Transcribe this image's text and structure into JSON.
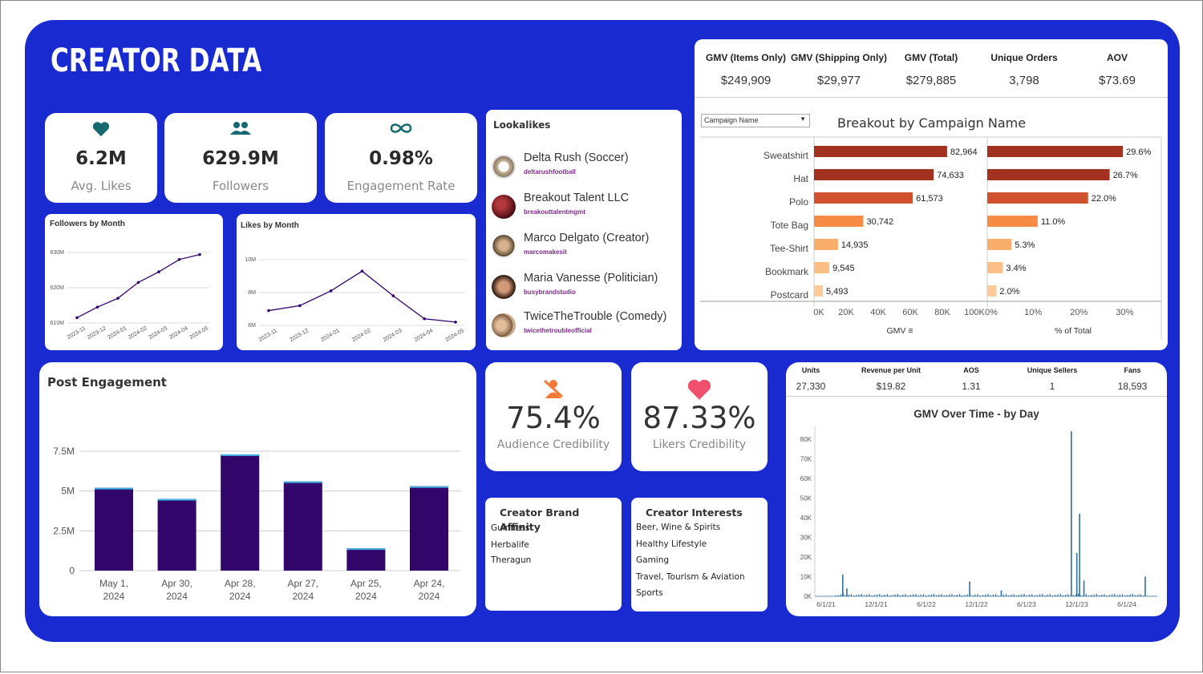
{
  "page": {
    "title": "CREATOR DATA"
  },
  "kpis": {
    "avg_likes": {
      "value": "6.2M",
      "label": "Avg. Likes"
    },
    "followers": {
      "value": "629.9M",
      "label": "Followers"
    },
    "engagement": {
      "value": "0.98%",
      "label": "Engagement Rate"
    }
  },
  "followers_by_month": {
    "title": "Followers by Month",
    "chart_data": {
      "type": "line",
      "categories": [
        "2023-11",
        "2023-12",
        "2024-01",
        "2024-02",
        "2024-03",
        "2024-04",
        "2024-05"
      ],
      "values": [
        611.5,
        614.5,
        617,
        621.5,
        624.5,
        628,
        629.4
      ],
      "y_ticks": [
        "630M",
        "620M",
        "610M"
      ],
      "ylim": [
        610,
        630
      ]
    }
  },
  "likes_by_month": {
    "title": "Likes by Month",
    "chart_data": {
      "type": "line",
      "categories": [
        "2023-11",
        "2023-12",
        "2024-01",
        "2024-02",
        "2024-03",
        "2024-04",
        "2024-05"
      ],
      "values": [
        6.9,
        7.2,
        8.1,
        9.3,
        7.8,
        6.4,
        6.2
      ],
      "y_ticks": [
        "10M",
        "8M",
        "6M"
      ],
      "ylim": [
        6,
        10
      ]
    }
  },
  "lookalikes": {
    "title": "Lookalikes",
    "items": [
      {
        "name": "Delta Rush (Soccer)",
        "handle": "deltarushfootball"
      },
      {
        "name": "Breakout Talent LLC",
        "handle": "breakouttalentmgmt"
      },
      {
        "name": "Marco Delgato (Creator)",
        "handle": "marcomakesit"
      },
      {
        "name": "Maria Vanesse (Politician)",
        "handle": "busybrandstudio"
      },
      {
        "name": "TwiceTheTrouble (Comedy)",
        "handle": "twicethetroubleofficial"
      }
    ]
  },
  "gmv_summary": {
    "headers": [
      "GMV (Items Only)",
      "GMV (Shipping Only)",
      "GMV (Total)",
      "Unique Orders",
      "AOV"
    ],
    "values": [
      "$249,909",
      "$29,977",
      "$279,885",
      "3,798",
      "$73.69"
    ]
  },
  "breakout": {
    "filter_label": "Campaign Name",
    "title": "Breakout by Campaign Name",
    "chart_data": {
      "type": "bar",
      "categories": [
        "Sweatshirt",
        "Hat",
        "Polo",
        "Tote Bag",
        "Tee-Shirt",
        "Bookmark",
        "Postcard"
      ],
      "series": [
        {
          "name": "GMV",
          "values": [
            82964,
            74633,
            61573,
            30742,
            14935,
            9545,
            5493
          ],
          "labels": [
            "82,964",
            "74,633",
            "61,573",
            "30,742",
            "14,935",
            "9,545",
            "5,493"
          ]
        },
        {
          "name": "% of Total",
          "values": [
            29.6,
            26.7,
            22.0,
            11.0,
            5.3,
            3.4,
            2.0
          ],
          "labels": [
            "29.6%",
            "26.7%",
            "22.0%",
            "11.0%",
            "5.3%",
            "3.4%",
            "2.0%"
          ]
        }
      ],
      "gmv_ticks": [
        "0K",
        "20K",
        "40K",
        "60K",
        "80K",
        "100K"
      ],
      "pct_ticks": [
        "0%",
        "10%",
        "20%",
        "30%"
      ],
      "xlabel_gmv": "GMV",
      "xlabel_pct": "% of Total",
      "colors": [
        "#a2321f",
        "#a2321f",
        "#d0512d",
        "#f68b45",
        "#f9ad6a",
        "#fbbf86",
        "#fccb99"
      ]
    }
  },
  "post_engagement": {
    "title": "Post Engagement",
    "chart_data": {
      "type": "bar",
      "categories": [
        [
          "May 1,",
          "2024"
        ],
        [
          "Apr 30,",
          "2024"
        ],
        [
          "Apr 28,",
          "2024"
        ],
        [
          "Apr 27,",
          "2024"
        ],
        [
          "Apr 25,",
          "2024"
        ],
        [
          "Apr 24,",
          "2024"
        ]
      ],
      "values": [
        5.2,
        4.5,
        7.3,
        5.6,
        1.4,
        5.3
      ],
      "y_ticks": [
        "7.5M",
        "5M",
        "2.5M",
        "0"
      ],
      "ylim": [
        0,
        7.5
      ],
      "bar_color": "#32056b",
      "cap_color": "#3db0e0"
    }
  },
  "audience_cred": {
    "value": "75.4%",
    "label": "Audience Credibility",
    "icon": "person-x-icon"
  },
  "likers_cred": {
    "value": "87.33%",
    "label": "Likers Credibility",
    "icon": "heart-icon"
  },
  "brand_affinity": {
    "title": "Creator Brand Affinity",
    "items": [
      "Guinness",
      "Herbalife",
      "Theragun"
    ]
  },
  "interests": {
    "title": "Creator Interests",
    "items": [
      "Beer, Wine & Spirits",
      "Healthy Lifestyle",
      "Gaming",
      "Travel, Tourism & Aviation",
      "Sports"
    ]
  },
  "metrics": {
    "headers": [
      "Units",
      "Revenue per Unit",
      "AOS",
      "Unique Sellers",
      "Fans"
    ],
    "values": [
      "27,330",
      "$19.82",
      "1.31",
      "1",
      "18,593"
    ]
  },
  "gmv_over_time": {
    "title": "GMV Over Time - by Day",
    "chart_data": {
      "type": "bar",
      "x_ticks": [
        "6/1/21",
        "12/1/21",
        "6/1/22",
        "12/1/22",
        "6/1/23",
        "12/1/23",
        "6/1/24"
      ],
      "y_ticks": [
        "80K",
        "70K",
        "60K",
        "50K",
        "40K",
        "30K",
        "20K",
        "10K",
        "0K"
      ],
      "ylim": [
        0,
        80000
      ],
      "spikes": [
        {
          "date": "2021-08-10",
          "value": 11000
        },
        {
          "date": "2021-08-25",
          "value": 4000
        },
        {
          "date": "2022-11-15",
          "value": 7500
        },
        {
          "date": "2023-03-10",
          "value": 3000
        },
        {
          "date": "2023-11-20",
          "value": 84000
        },
        {
          "date": "2023-12-10",
          "value": 22000
        },
        {
          "date": "2023-12-20",
          "value": 42000
        },
        {
          "date": "2024-01-05",
          "value": 8000
        },
        {
          "date": "2024-08-15",
          "value": 10000
        }
      ]
    }
  }
}
